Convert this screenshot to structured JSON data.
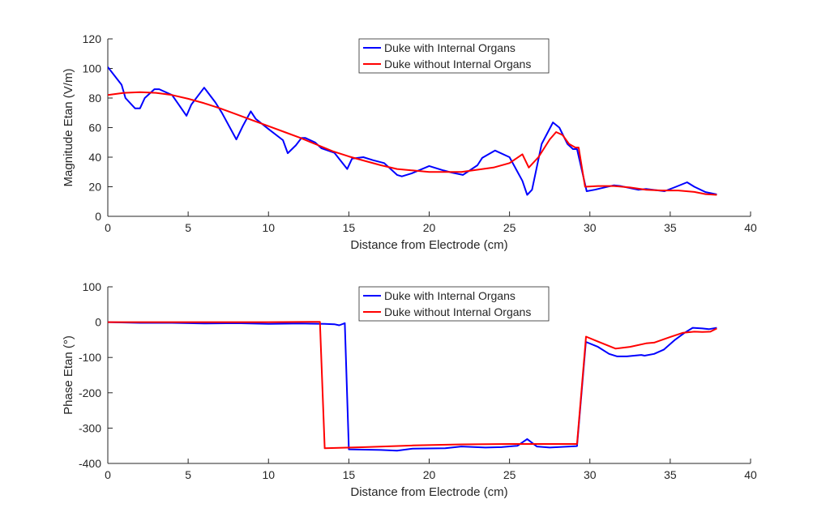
{
  "chart_data": [
    {
      "type": "line",
      "title": "",
      "xlabel": "Distance from Electrode (cm)",
      "ylabel": "Magnitude Etan (V/m)",
      "xlim": [
        0,
        40
      ],
      "ylim": [
        0,
        120
      ],
      "xticks": [
        0,
        5,
        10,
        15,
        20,
        25,
        30,
        35,
        40
      ],
      "yticks": [
        0,
        20,
        40,
        60,
        80,
        100,
        120
      ],
      "grid": false,
      "legend_position": "top-center",
      "series": [
        {
          "name": "Duke with Internal Organs",
          "color": "#0000ff",
          "x": [
            0,
            0.86,
            1.1,
            1.7,
            2,
            2.3,
            2.9,
            3.2,
            4,
            4.9,
            5.2,
            6,
            6.7,
            7.1,
            8,
            8.4,
            8.9,
            9.2,
            10,
            10.9,
            11.2,
            11.7,
            12.05,
            12.3,
            12.9,
            13.3,
            14.1,
            14.9,
            15.2,
            15.9,
            16.5,
            17.2,
            18,
            18.3,
            18.9,
            20,
            20.9,
            21.4,
            22.1,
            23,
            23.3,
            24.1,
            25,
            25.8,
            26.1,
            26.4,
            27,
            27.7,
            28.1,
            28.6,
            28.95,
            29.2,
            29.8,
            30.3,
            31.5,
            31.9,
            33,
            33.5,
            34.65,
            35.3,
            36.05,
            36.5,
            37.2,
            37.9
          ],
          "y": [
            101,
            89,
            80,
            73,
            73,
            80,
            86,
            86,
            82,
            68,
            75.6,
            87,
            77,
            70,
            52,
            61,
            71,
            66,
            59,
            51.5,
            42.7,
            48,
            53,
            53,
            50,
            46,
            43,
            32,
            39,
            40,
            38,
            36,
            28,
            27,
            29,
            34,
            31,
            29.6,
            28,
            34.5,
            39.5,
            44.5,
            40,
            24,
            14.5,
            18,
            49,
            63.5,
            60,
            49,
            45.5,
            45.5,
            17,
            18,
            21,
            20.5,
            18,
            18.5,
            17,
            19.7,
            23,
            20,
            16.4,
            14.8
          ]
        },
        {
          "name": "Duke without Internal Organs",
          "color": "#ff0000",
          "x": [
            0,
            1,
            2,
            3,
            4,
            5,
            6,
            7,
            8,
            9,
            10,
            11,
            12,
            13,
            14,
            15,
            16,
            17,
            18,
            19,
            20,
            21,
            22,
            23,
            24,
            25,
            25.8,
            26.2,
            26.8,
            27.5,
            27.9,
            28.3,
            28.7,
            29.1,
            29.3,
            29.7,
            30.5,
            31.5,
            32.5,
            33.5,
            34.5,
            35.5,
            36.5,
            37.2,
            37.9
          ],
          "y": [
            82,
            83.5,
            84,
            83.5,
            82,
            79.5,
            76.5,
            73,
            69,
            65,
            61,
            57,
            53,
            48.5,
            44,
            40.5,
            37.5,
            34.5,
            32,
            31,
            30,
            30,
            30,
            31.5,
            33,
            36,
            42,
            33,
            40,
            52,
            57,
            55,
            49,
            46.5,
            46.5,
            20,
            20.5,
            20.5,
            19.5,
            18,
            17.5,
            17.5,
            16.5,
            15,
            14.5
          ]
        }
      ]
    },
    {
      "type": "line",
      "title": "",
      "xlabel": "Distance from Electrode (cm)",
      "ylabel": "Phase Etan (°)",
      "xlim": [
        0,
        40
      ],
      "ylim": [
        -400,
        100
      ],
      "xticks": [
        0,
        5,
        10,
        15,
        20,
        25,
        30,
        35,
        40
      ],
      "yticks": [
        -400,
        -300,
        -200,
        -100,
        0,
        100
      ],
      "grid": false,
      "legend_position": "top-center",
      "series": [
        {
          "name": "Duke with Internal Organs",
          "color": "#0000ff",
          "x": [
            0,
            2,
            4,
            6,
            8,
            10,
            12,
            13.5,
            14.1,
            14.4,
            14.75,
            15,
            17,
            18,
            19,
            21,
            22,
            23.5,
            24.5,
            25.5,
            26.1,
            26.7,
            27.5,
            28,
            29.2,
            29.75,
            30.5,
            31.2,
            31.7,
            32.3,
            33.2,
            33.4,
            34,
            34.6,
            35.3,
            35.9,
            36.4,
            37,
            37.4,
            37.9
          ],
          "y": [
            0,
            -2,
            -2,
            -4,
            -3,
            -5,
            -4,
            -5,
            -6,
            -9,
            -3,
            -360,
            -362,
            -364,
            -358,
            -357,
            -352,
            -355,
            -354,
            -350,
            -331,
            -352,
            -355,
            -354,
            -351,
            -56,
            -70,
            -90,
            -97,
            -97,
            -93,
            -95,
            -90,
            -78,
            -50,
            -30,
            -16,
            -18,
            -20,
            -16
          ]
        },
        {
          "name": "Duke without Internal Organs",
          "color": "#ff0000",
          "x": [
            0,
            5,
            10,
            13.2,
            13.5,
            16,
            19,
            22,
            25,
            27,
            29.2,
            29.76,
            30.5,
            31.6,
            32.5,
            33.5,
            34,
            35,
            35.8,
            36.5,
            37,
            37.5,
            37.9
          ],
          "y": [
            0,
            0,
            0,
            1,
            -357,
            -354,
            -349,
            -346,
            -345,
            -345,
            -345,
            -41,
            -55,
            -75,
            -70,
            -60,
            -58,
            -42,
            -30,
            -27,
            -28,
            -27,
            -18
          ]
        }
      ]
    }
  ]
}
